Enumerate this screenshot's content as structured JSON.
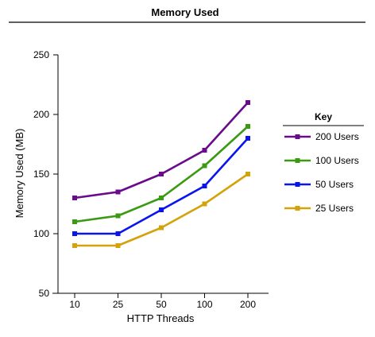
{
  "chart_data": {
    "type": "line",
    "title": "Memory Used",
    "xlabel": "HTTP Threads",
    "ylabel": "Memory Used (MB)",
    "categories": [
      "10",
      "25",
      "50",
      "100",
      "200"
    ],
    "ylim": [
      50,
      250
    ],
    "yticks": [
      50,
      100,
      150,
      200,
      250
    ],
    "grid": false,
    "legend": {
      "title": "Key",
      "position": "right"
    },
    "series": [
      {
        "name": "200 Users",
        "color": "#6a0a8c",
        "values": [
          130,
          135,
          150,
          170,
          210
        ]
      },
      {
        "name": "100 Users",
        "color": "#3a9a12",
        "values": [
          110,
          115,
          130,
          157,
          190
        ]
      },
      {
        "name": "50 Users",
        "color": "#0a14f0",
        "values": [
          100,
          100,
          120,
          140,
          180
        ]
      },
      {
        "name": "25 Users",
        "color": "#d4a20a",
        "values": [
          90,
          90,
          105,
          125,
          150
        ]
      }
    ]
  }
}
